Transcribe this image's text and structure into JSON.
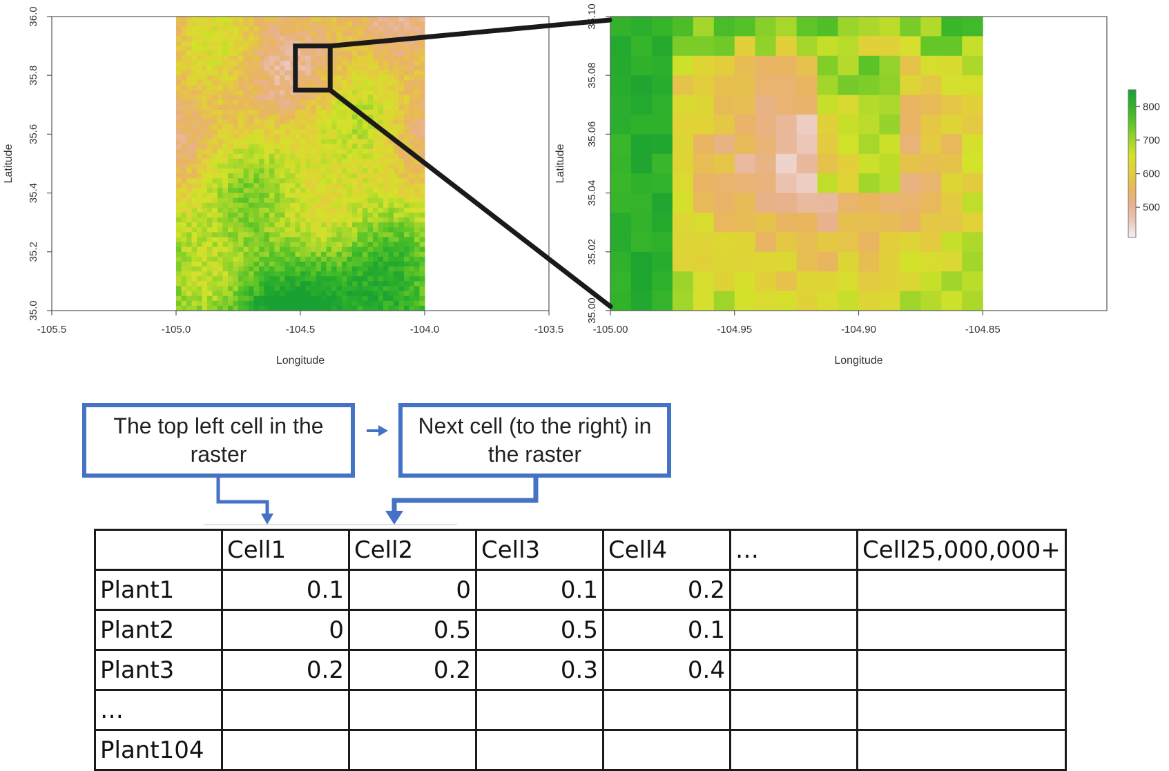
{
  "colors": {
    "elevation_ramp": [
      "#f2f2f2",
      "#ecc7ba",
      "#e8b28f",
      "#e9b55e",
      "#e2cf3a",
      "#d3e22a",
      "#9bd42b",
      "#5cc427",
      "#30b22b",
      "#19a132"
    ],
    "zoom_frame": "#1a1a1a",
    "callout_border": "#4472c4",
    "callout_arrow": "#4472c4",
    "table_border": "#1a1a1a"
  },
  "left_map": {
    "xlabel": "Longitude",
    "ylabel": "Latitude",
    "x_ticks": [
      "-105.5",
      "-105.0",
      "-104.5",
      "-104.0",
      "-103.5"
    ],
    "y_ticks": [
      "35.0",
      "35.2",
      "35.4",
      "35.6",
      "35.8",
      "36.0"
    ],
    "xlim": [
      -105.5,
      -103.5
    ],
    "ylim": [
      35.0,
      36.0
    ],
    "raster_extent": {
      "lon": [
        -105.0,
        -104.0
      ],
      "lat": [
        35.0,
        36.0
      ]
    },
    "zoom_box": {
      "lon": [
        -104.52,
        -104.38
      ],
      "lat": [
        35.75,
        35.9
      ]
    }
  },
  "right_map": {
    "xlabel": "Longitude",
    "ylabel": "Latitude",
    "x_ticks": [
      "-105.00",
      "-104.95",
      "-104.90",
      "-104.85"
    ],
    "y_ticks": [
      "35.00",
      "35.02",
      "35.04",
      "35.06",
      "35.08",
      "35.10"
    ],
    "xlim": [
      -105.0,
      -104.8
    ],
    "ylim": [
      35.0,
      35.1
    ],
    "raster_extent": {
      "lon": [
        -105.0,
        -104.85
      ],
      "lat": [
        35.0,
        35.1
      ]
    },
    "grid": {
      "cols": 18,
      "rows": 15
    }
  },
  "legend": {
    "labels": [
      "800",
      "700",
      "600",
      "500"
    ],
    "values": [
      800,
      700,
      600,
      500
    ],
    "range": [
      410,
      850
    ]
  },
  "callouts": {
    "first": "The top left cell in the raster",
    "second": "Next cell (to the right) in the raster"
  },
  "table": {
    "headers": [
      "",
      "Cell1",
      "Cell2",
      "Cell3",
      "Cell4",
      "…",
      "Cell25,000,000+"
    ],
    "rows": [
      [
        "Plant1",
        "0.1",
        "0",
        "0.1",
        "0.2",
        "",
        ""
      ],
      [
        "Plant2",
        "0",
        "0.5",
        "0.5",
        "0.1",
        "",
        ""
      ],
      [
        "Plant3",
        "0.2",
        "0.2",
        "0.3",
        "0.4",
        "",
        ""
      ],
      [
        "…",
        "",
        "",
        "",
        "",
        "",
        ""
      ],
      [
        "Plant104",
        "",
        "",
        "",
        "",
        "",
        ""
      ]
    ]
  }
}
